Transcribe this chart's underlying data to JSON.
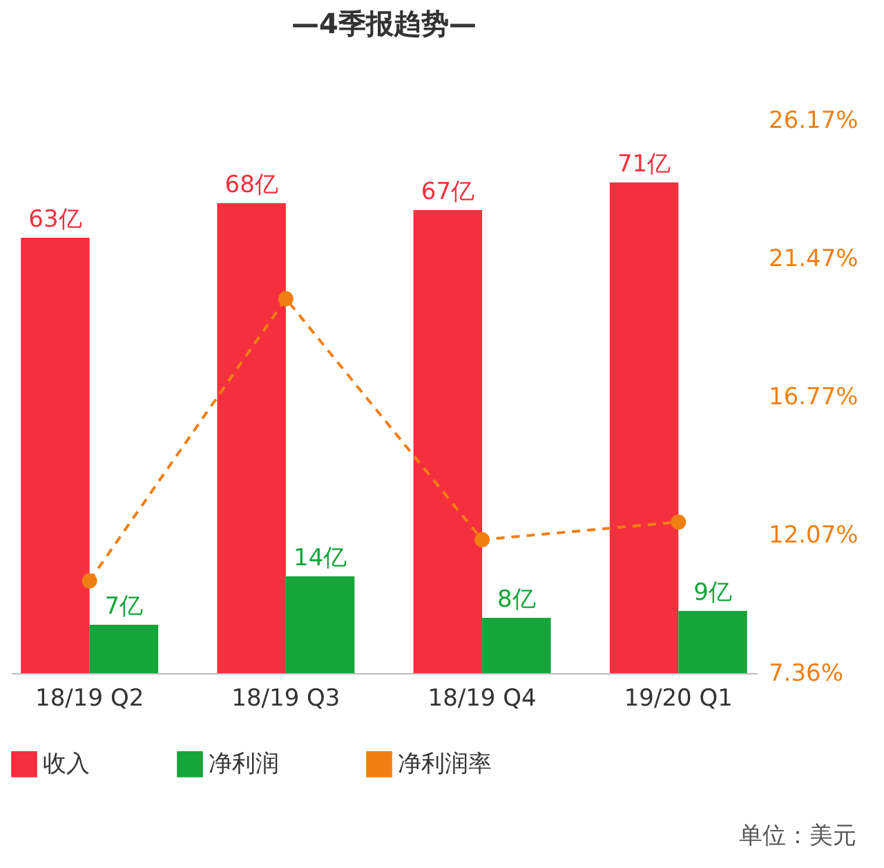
{
  "chart_data": {
    "type": "bar",
    "title": "—4季报趋势—",
    "categories": [
      "18/19 Q2",
      "18/19 Q3",
      "18/19 Q4",
      "19/20 Q1"
    ],
    "series": [
      {
        "name": "收入",
        "color": "#f5303e",
        "values": [
          63,
          68,
          67,
          71
        ],
        "value_labels": [
          "63亿",
          "68亿",
          "67亿",
          "71亿"
        ]
      },
      {
        "name": "净利润",
        "color": "#16a53a",
        "values": [
          7,
          14,
          8,
          9
        ],
        "value_labels": [
          "7亿",
          "14亿",
          "8亿",
          "9亿"
        ]
      },
      {
        "name": "净利润率",
        "type": "line",
        "axis": "y2",
        "color": "#f07f12",
        "values": [
          10.5,
          20.1,
          11.9,
          12.5
        ],
        "line_style": "dashed",
        "marker": "circle"
      }
    ],
    "y2lim": [
      7.36,
      26.17
    ],
    "y2ticks": [
      {
        "value": 7.36,
        "label": "7.36%"
      },
      {
        "value": 12.07,
        "label": "12.07%"
      },
      {
        "value": 16.77,
        "label": "16.77%"
      },
      {
        "value": 21.47,
        "label": "21.47%"
      },
      {
        "value": 26.17,
        "label": "26.17%"
      }
    ],
    "legend": "bottom",
    "grid": false,
    "annotations": [
      "单位：美元"
    ]
  }
}
